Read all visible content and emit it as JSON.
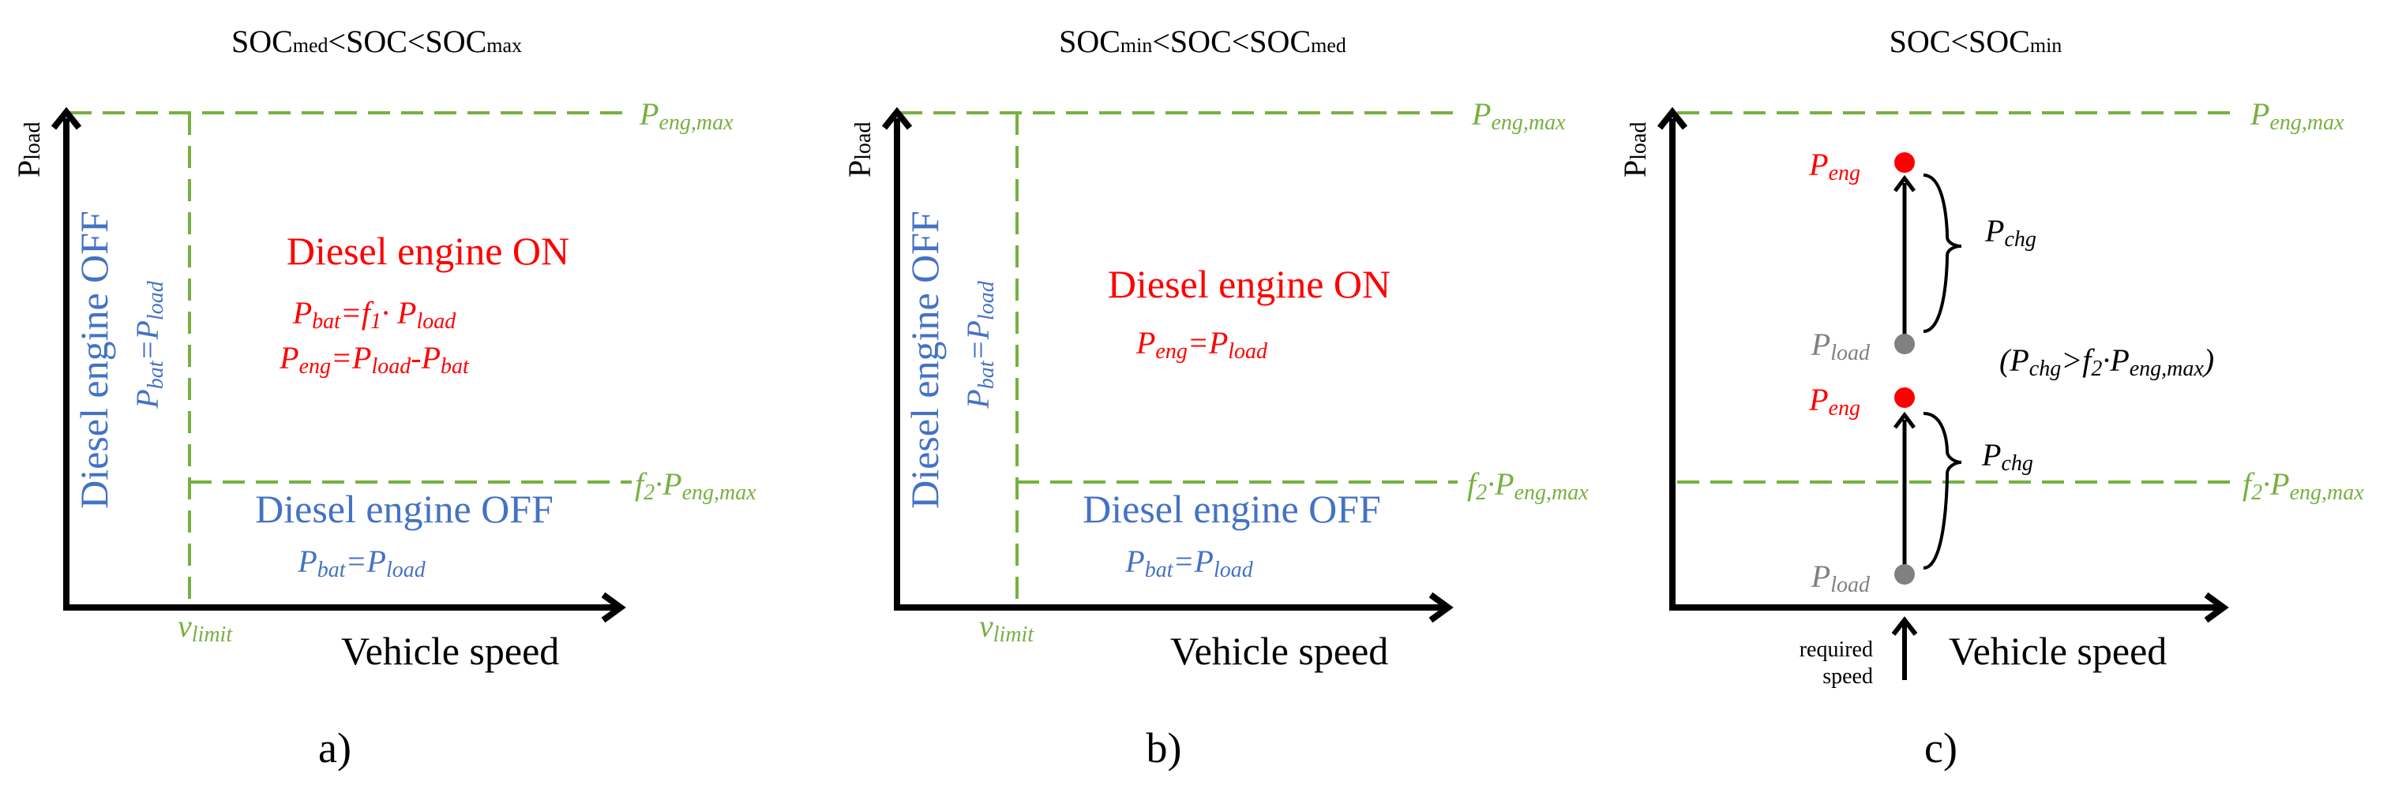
{
  "colors": {
    "green": "#77b041",
    "red": "#ff0000",
    "blue": "#4472c4",
    "gray": "#808080",
    "black": "#000000"
  },
  "panel_a": {
    "title": {
      "base1": "SOC",
      "sub1": "med",
      "mid1": "<SOC<SOC",
      "sub2": "max"
    },
    "y_axis": {
      "base": "P",
      "sub": "load"
    },
    "x_axis": "Vehicle speed",
    "v_limit": {
      "base": "v",
      "sub": "limit"
    },
    "p_eng_max": {
      "base": "P",
      "sub": "eng,max"
    },
    "threshold": {
      "f": "f",
      "fsub": "2",
      "mid": "·P",
      "sub": "eng,max"
    },
    "left_region": {
      "title": "Diesel engine OFF",
      "eq": {
        "a": "P",
        "asub": "bat",
        "eq": "=P",
        "bsub": "load"
      }
    },
    "on_region": {
      "title": "Diesel engine ON",
      "eq1": {
        "a": "P",
        "asub": "bat",
        "eq": "=f",
        "fsub": "1",
        "dot": "· P",
        "bsub": "load"
      },
      "eq2": {
        "a": "P",
        "asub": "eng",
        "eq": "=P",
        "bsub": "load",
        "minus": "-P",
        "csub": "bat"
      }
    },
    "off_region": {
      "title": "Diesel engine OFF",
      "eq": {
        "a": "P",
        "asub": "bat",
        "eq": "=P",
        "bsub": "load"
      }
    },
    "label": "a)"
  },
  "panel_b": {
    "title": {
      "base1": "SOC",
      "sub1": "min",
      "mid1": "<SOC<SOC",
      "sub2": "med"
    },
    "y_axis": {
      "base": "P",
      "sub": "load"
    },
    "x_axis": "Vehicle speed",
    "v_limit": {
      "base": "v",
      "sub": "limit"
    },
    "p_eng_max": {
      "base": "P",
      "sub": "eng,max"
    },
    "threshold": {
      "f": "f",
      "fsub": "2",
      "mid": "·P",
      "sub": "eng,max"
    },
    "left_region": {
      "title": "Diesel engine OFF",
      "eq": {
        "a": "P",
        "asub": "bat",
        "eq": "=P",
        "bsub": "load"
      }
    },
    "on_region": {
      "title": "Diesel engine ON",
      "eq": {
        "a": "P",
        "asub": "eng",
        "eq": "=P",
        "bsub": "load"
      }
    },
    "off_region": {
      "title": "Diesel engine OFF",
      "eq": {
        "a": "P",
        "asub": "bat",
        "eq": "=P",
        "bsub": "load"
      }
    },
    "label": "b)"
  },
  "panel_c": {
    "title": {
      "base1": "SOC",
      "mid1": "<SOC",
      "sub2": "min"
    },
    "y_axis": {
      "base": "P",
      "sub": "load"
    },
    "x_axis": "Vehicle speed",
    "p_eng_max": {
      "base": "P",
      "sub": "eng,max"
    },
    "threshold": {
      "f": "f",
      "fsub": "2",
      "mid": "·P",
      "sub": "eng,max"
    },
    "upper": {
      "eng": {
        "base": "P",
        "sub": "eng"
      },
      "load": {
        "base": "P",
        "sub": "load"
      },
      "chg": {
        "base": "P",
        "sub": "chg"
      }
    },
    "condition": {
      "open": "(P",
      "sub1": "chg",
      "gt": ">f",
      "fsub": "2",
      "mid": "·P",
      "sub2": "eng,max",
      "close": ")"
    },
    "lower": {
      "eng": {
        "base": "P",
        "sub": "eng"
      },
      "load": {
        "base": "P",
        "sub": "load"
      },
      "chg": {
        "base": "P",
        "sub": "chg"
      }
    },
    "required_speed": {
      "line1": "required",
      "line2": "speed"
    },
    "label": "c)"
  }
}
